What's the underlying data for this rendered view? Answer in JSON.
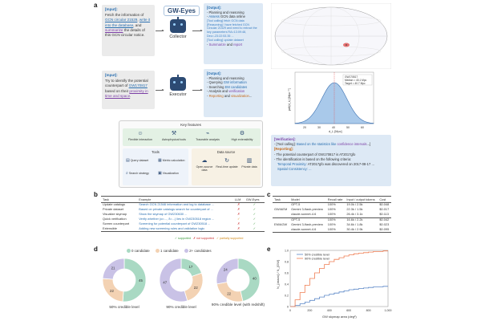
{
  "panel_letters": {
    "a": "a",
    "b": "b",
    "c": "c",
    "d": "d",
    "e": "e"
  },
  "panel_a": {
    "logo": "GW-Eyes",
    "input1": {
      "header": "[Input]:",
      "t1": "Fetch the information of ",
      "l1": "GCN circular 21529",
      "t2": ", ",
      "l2": "write it into the database",
      "t3": ", and ",
      "l3": "summarize",
      "t4": " the details of this GCN circular notice."
    },
    "input2": {
      "header": "[Input]:",
      "t1": "Try to identify the potential counterpart of ",
      "l1": "GW170817",
      "t2": " based on their ",
      "l2": "proximity in time and space",
      "t3": "."
    },
    "collector_label": "Collector",
    "executor_label": "Executor",
    "output1": {
      "header": "[Output]:",
      "step1": "- Planning and reasoning",
      "step2a": "- ",
      "step2b": "Assess",
      "step2c": " GCN data online",
      "note1": "[Tool calling] fetch GCN data",
      "note2": "[Reasoning] I have fetched GCN Circular 21529 and need to extract the key parameters RA=13:09:48, Dec=-23:22:53.35 ...",
      "note3": "[Tool calling] update dataset",
      "step3a": "- ",
      "step3b": "Summarize",
      "step3c": " and ",
      "step3d": "report"
    },
    "output2": {
      "header": "[Output]:",
      "s1": "- Planning and reasoning",
      "s2a": "- Querying ",
      "s2b": "GW information",
      "s3a": "- Searching ",
      "s3b": "EM candidates",
      "s4a": "- Analysis and ",
      "s4b": "verification",
      "s5a": "- ",
      "s5b": "Reporting",
      "s5c": " and ",
      "s5d": "visualization",
      "s5e": "..."
    },
    "features_title": "Key features",
    "features": [
      "Flexible interaction",
      "Astrophysical tools",
      "Traceable analysis",
      "High extensibility"
    ],
    "tools_title": "Tools",
    "tools": [
      "Query dataset",
      "Metric calculation",
      "Search strategy",
      "Visualization"
    ],
    "datasource_title": "Data source",
    "datasources": [
      "Open-source data",
      "Real-time update",
      "Private data"
    ],
    "verification": {
      "header": "[Verification]:",
      "line1a": "- [Tool calling]: ",
      "line1b": "Based on the statistics like ",
      "line1c": "confidence intervals",
      "line1d": "...]",
      "reporting": "[Reporting]:",
      "r1": "- The potential counterpart of GW170817 is AT2017gfo",
      "r2": "- The identification is based on the following criteria:",
      "r3a": "Temporal Proximity: ",
      "r3b": "AT2017gfo was discovered on 2017-08-17 ...",
      "r4": "Spatial Consistency: ..."
    },
    "hist": {
      "ylabel": "pdf(d_L) [Mpc⁻¹]",
      "xlabel": "d_L [Mpc]",
      "xticks": [
        "20",
        "30",
        "40",
        "50",
        "60"
      ],
      "legend": [
        "GW170817",
        "Median = 40.1 Mpc",
        "Target = 40.7 Mpc"
      ]
    }
  },
  "panel_b": {
    "headers": [
      "Task",
      "Example",
      "LLM",
      "GW-Eyes"
    ],
    "rows": [
      {
        "task": "Update catalogs",
        "example": "Search GCN 21546 information and log to database ...",
        "llm": "✗",
        "gw": "✓",
        "llm_cls": "cx"
      },
      {
        "task": "Private dataset",
        "example": "Based on private catalogs search for counterpart of ...",
        "llm": "✗",
        "gw": "✓",
        "llm_cls": "cx"
      },
      {
        "task": "Visualize skymap",
        "example": "Show the skymap of GW230630 ...",
        "llm": "✗",
        "gw": "✓",
        "llm_cls": "cx"
      },
      {
        "task": "Quick verification",
        "example": "Verify whether (α=..., δ=...) lies in GW230518 region ...",
        "llm": "✓",
        "gw": "✓",
        "llm_cls": "cp"
      },
      {
        "task": "Screen counterpart",
        "example": "Screening for potential counterpart of GW230518 ...",
        "llm": "✗",
        "gw": "✓",
        "llm_cls": "cx"
      },
      {
        "task": "Extensible",
        "example": "Adding new screening rules and validation logic",
        "llm": "✗",
        "gw": "✓",
        "llm_cls": "cx"
      }
    ],
    "legend": {
      "supported": "✓ supported",
      "not_supported": "✗ not supported",
      "partial": "✓ partially supported"
    }
  },
  "panel_c": {
    "headers": [
      "Task",
      "Model",
      "Recall rate",
      "Input / output tokens",
      "Cost"
    ],
    "groups": [
      {
        "task": "GW/AEM",
        "rows": [
          {
            "model": "GPT-5",
            "recall": "100%",
            "tokens": "19.0k / 2.5k",
            "cost": "$0.048"
          },
          {
            "model": "Gemini 3-flash-preview",
            "recall": "100%",
            "tokens": "22.3k / 1.5k",
            "cost": "$0.017"
          },
          {
            "model": "claude-sonnet-4.6",
            "recall": "100%",
            "tokens": "26.4k / 3.1k",
            "cost": "$0.113"
          }
        ]
      },
      {
        "task": "EM/AGW",
        "rows": [
          {
            "model": "GPT-5",
            "recall": "100%",
            "tokens": "16.6k / 2.2k",
            "cost": "$0.042"
          },
          {
            "model": "Gemini 3-flash-preview",
            "recall": "100%",
            "tokens": "34.6k / 1.8k",
            "cost": "$0.023"
          },
          {
            "model": "claude-sonnet-4.6",
            "recall": "100%",
            "tokens": "30.4k / 2.9k",
            "cost": "$0.095"
          }
        ]
      }
    ]
  },
  "chart_data": [
    {
      "type": "pie",
      "legend": [
        "0 candidate",
        "1 candidate",
        "2+ candidates"
      ],
      "colors": [
        "#a9d9c3",
        "#f3d2b3",
        "#c9c2e6"
      ],
      "donuts": [
        {
          "label": "50% credible level",
          "values": [
            45,
            22,
            21
          ]
        },
        {
          "label": "90% credible level",
          "values": [
            17,
            22,
            47
          ]
        },
        {
          "label": "90% credible level (with redshift)",
          "values": [
            40,
            22,
            24
          ]
        }
      ]
    },
    {
      "type": "line",
      "title": "",
      "xlabel": "GW skymap area (deg²)",
      "ylabel": "N_{assoc} / N_{GW}",
      "xticks": [
        "0",
        "200",
        "400",
        "600",
        "800",
        "1,000"
      ],
      "yticks": [
        "0",
        "0.2",
        "0.4",
        "0.6",
        "0.8",
        "1.0"
      ],
      "xlim": [
        0,
        1000
      ],
      "ylim": [
        0,
        1.0
      ],
      "series": [
        {
          "name": "50% credible level",
          "color": "#5b87c7",
          "x": [
            0,
            50,
            100,
            150,
            200,
            250,
            300,
            350,
            400,
            450,
            500,
            550,
            600,
            650,
            700,
            750,
            800,
            850,
            900,
            950,
            1000
          ],
          "y": [
            0,
            0.02,
            0.05,
            0.08,
            0.11,
            0.14,
            0.17,
            0.2,
            0.22,
            0.24,
            0.26,
            0.28,
            0.3,
            0.31,
            0.32,
            0.33,
            0.34,
            0.35,
            0.35,
            0.36,
            0.36
          ]
        },
        {
          "name": "90% credible level",
          "color": "#ef7d52",
          "x": [
            0,
            50,
            100,
            150,
            200,
            250,
            300,
            350,
            400,
            450,
            500,
            550,
            600,
            650,
            700,
            750,
            800,
            850,
            900,
            950,
            1000
          ],
          "y": [
            0,
            0.12,
            0.25,
            0.38,
            0.5,
            0.6,
            0.68,
            0.75,
            0.8,
            0.84,
            0.87,
            0.9,
            0.92,
            0.94,
            0.95,
            0.96,
            0.97,
            0.98,
            0.98,
            0.99,
            0.99
          ]
        }
      ]
    }
  ]
}
